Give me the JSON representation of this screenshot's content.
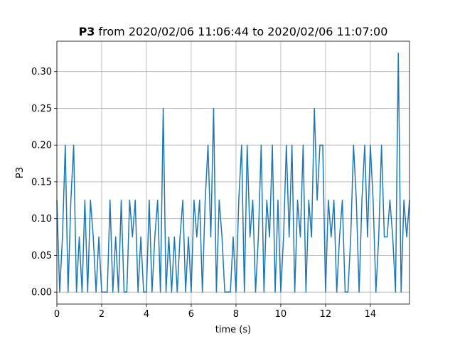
{
  "chart_data": {
    "type": "line",
    "title_bold": "P3",
    "title": "from 2020/02/06 11:06:44 to 2020/02/06 11:07:00",
    "x_label": "time (s)",
    "y_label": "P3",
    "grid": true,
    "xlim": [
      0,
      15.75
    ],
    "xticks": [
      0,
      2,
      4,
      6,
      8,
      10,
      12,
      14
    ],
    "ylim": [
      -0.01625,
      0.34125
    ],
    "yticks": [
      {
        "value": 0,
        "label": "0.00"
      },
      {
        "value": 0.05,
        "label": "0.05"
      },
      {
        "value": 0.1,
        "label": "0.10"
      },
      {
        "value": 0.15,
        "label": "0.15"
      },
      {
        "value": 0.2,
        "label": "0.20"
      },
      {
        "value": 0.25,
        "label": "0.25"
      },
      {
        "value": 0.3,
        "label": "0.30"
      }
    ],
    "x": [
      0,
      0.125,
      0.25,
      0.375,
      0.5,
      0.625,
      0.75,
      0.875,
      1,
      1.125,
      1.25,
      1.375,
      1.5,
      1.625,
      1.75,
      1.875,
      2,
      2.125,
      2.25,
      2.375,
      2.5,
      2.625,
      2.75,
      2.875,
      3,
      3.125,
      3.25,
      3.375,
      3.5,
      3.625,
      3.75,
      3.875,
      4,
      4.125,
      4.25,
      4.375,
      4.5,
      4.625,
      4.75,
      4.875,
      5,
      5.125,
      5.25,
      5.375,
      5.5,
      5.625,
      5.75,
      5.875,
      6,
      6.125,
      6.25,
      6.375,
      6.5,
      6.625,
      6.75,
      6.875,
      7,
      7.125,
      7.25,
      7.375,
      7.5,
      7.625,
      7.75,
      7.875,
      8,
      8.125,
      8.25,
      8.375,
      8.5,
      8.625,
      8.75,
      8.875,
      9,
      9.125,
      9.25,
      9.375,
      9.5,
      9.625,
      9.75,
      9.875,
      10,
      10.125,
      10.25,
      10.375,
      10.5,
      10.625,
      10.75,
      10.875,
      11,
      11.125,
      11.25,
      11.375,
      11.5,
      11.625,
      11.75,
      11.875,
      12,
      12.125,
      12.25,
      12.375,
      12.5,
      12.625,
      12.75,
      12.875,
      13,
      13.125,
      13.25,
      13.375,
      13.5,
      13.625,
      13.75,
      13.875,
      14,
      14.125,
      14.25,
      14.375,
      14.5,
      14.625,
      14.75,
      14.875,
      15,
      15.125,
      15.25,
      15.375,
      15.5,
      15.625,
      15.75
    ],
    "series": [
      {
        "color": "#1f77b4",
        "values": [
          0.125,
          0,
          0.075,
          0.2,
          0,
          0.125,
          0.2,
          0,
          0.075,
          0,
          0.125,
          0,
          0.125,
          0.075,
          0,
          0.075,
          0,
          0,
          0,
          0.125,
          0,
          0.075,
          0,
          0.125,
          0,
          0,
          0.125,
          0.075,
          0.125,
          0,
          0.075,
          0,
          0,
          0.125,
          0,
          0.075,
          0.125,
          0,
          0.25,
          0,
          0.075,
          0,
          0.075,
          0,
          0.075,
          0.125,
          0,
          0.075,
          0,
          0.125,
          0.075,
          0.125,
          0,
          0.125,
          0.2,
          0.075,
          0.25,
          0,
          0.125,
          0.075,
          0,
          0,
          0,
          0.075,
          0,
          0.125,
          0.2,
          0,
          0.2,
          0.075,
          0.125,
          0,
          0.075,
          0.2,
          0,
          0.125,
          0.075,
          0.2,
          0,
          0.125,
          0,
          0.075,
          0.2,
          0.075,
          0.2,
          0,
          0.125,
          0.075,
          0.2,
          0,
          0.125,
          0.075,
          0.25,
          0.125,
          0.2,
          0.2,
          0,
          0.125,
          0.075,
          0.125,
          0,
          0.075,
          0.125,
          0,
          0,
          0.075,
          0.2,
          0.125,
          0,
          0.125,
          0.2,
          0.075,
          0.2,
          0.125,
          0,
          0.075,
          0.2,
          0.075,
          0.075,
          0.125,
          0.075,
          0,
          0.325,
          0,
          0.125,
          0.075,
          0.125
        ]
      }
    ]
  }
}
